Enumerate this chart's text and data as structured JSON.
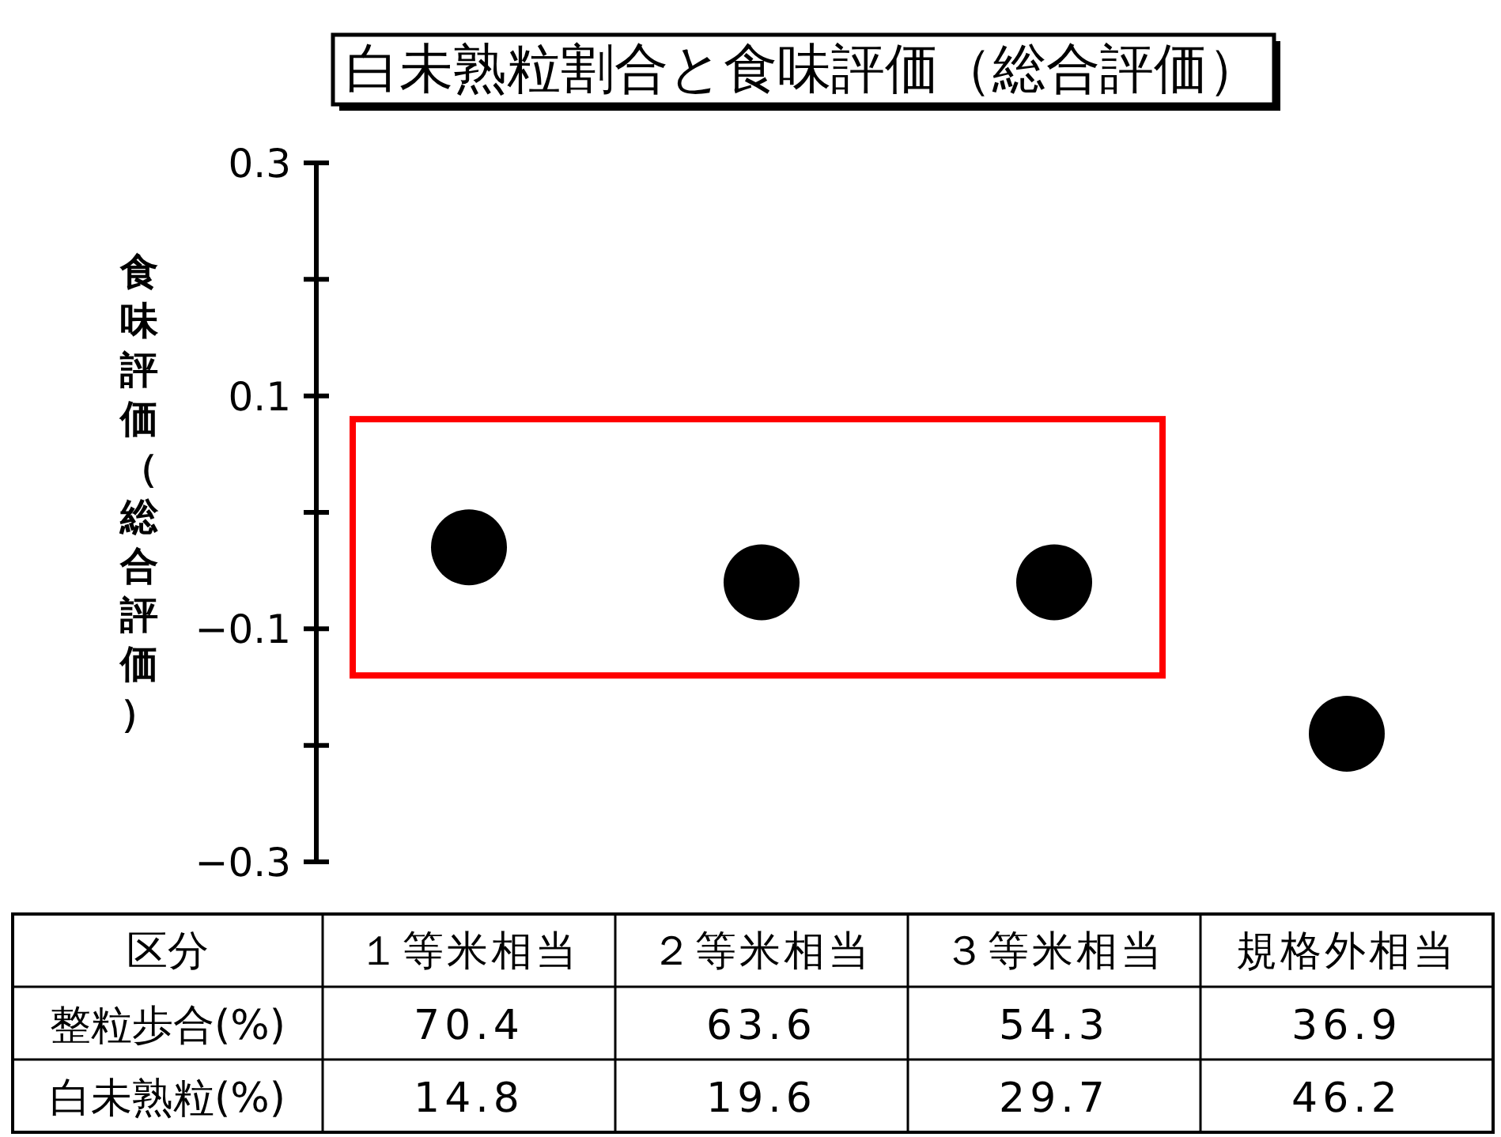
{
  "chart_data": {
    "type": "scatter",
    "title": "白未熟粒割合と食味評価（総合評価）",
    "ylabel": "食味評価（総合評価）",
    "categories": [
      "１等米相当",
      "２等米相当",
      "３等米相当",
      "規格外相当"
    ],
    "series": [
      {
        "color": "#000000",
        "values": [
          -0.03,
          -0.06,
          -0.06,
          -0.19
        ]
      }
    ],
    "marker": "circle",
    "ylim": [
      -0.3,
      0.3
    ],
    "yticks": [
      -0.3,
      {
        "value": -0.2,
        "label": null
      },
      -0.1,
      {
        "value": 0,
        "label": null
      },
      0.1,
      {
        "value": 0.2,
        "label": null
      },
      0.3
    ],
    "tick_labels": "y",
    "annotations": [
      "区分",
      "整粒歩合(%)",
      "70.4",
      "63.6",
      "54.3",
      "36.9",
      "白未熟粒(%)",
      "14.8",
      "19.6",
      "29.7",
      "46.2"
    ]
  }
}
